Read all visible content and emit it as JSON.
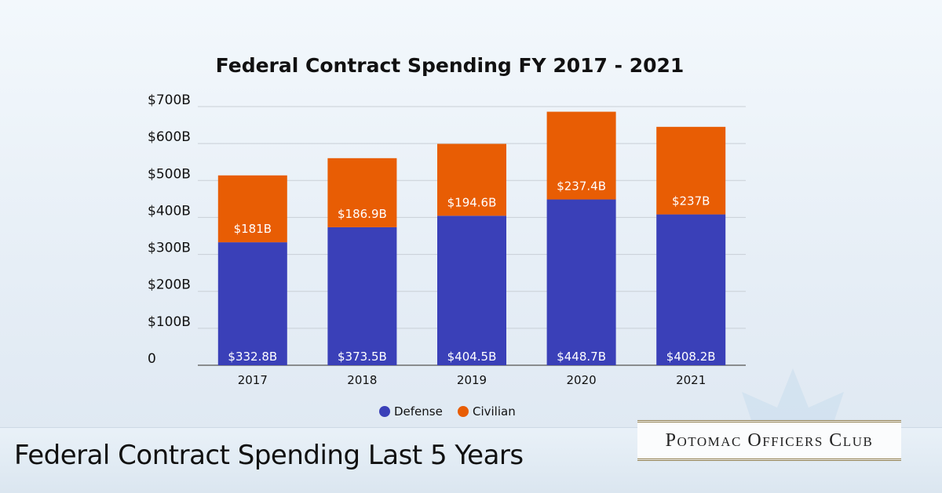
{
  "footer": {
    "headline": "Federal Contract Spending Last 5 Years",
    "brand": "Potomac Officers Club"
  },
  "colors": {
    "defense": "#3a40b8",
    "civilian": "#e85d04",
    "grid": "#c9cfd6",
    "axis": "#6c6c6c"
  },
  "chart_data": {
    "type": "bar",
    "stacked": true,
    "title": "Federal Contract Spending FY 2017 - 2021",
    "xlabel": "",
    "ylabel": "",
    "categories": [
      "2017",
      "2018",
      "2019",
      "2020",
      "2021"
    ],
    "series": [
      {
        "name": "Defense",
        "color": "#3a40b8",
        "values": [
          332.8,
          373.5,
          404.5,
          448.7,
          408.2
        ],
        "labels": [
          "$332.8B",
          "$373.5B",
          "$404.5B",
          "$448.7B",
          "$408.2B"
        ]
      },
      {
        "name": "Civilian",
        "color": "#e85d04",
        "values": [
          181,
          186.9,
          194.6,
          237.4,
          237
        ],
        "labels": [
          "$181B",
          "$186.9B",
          "$194.6B",
          "$237.4B",
          "$237B"
        ]
      }
    ],
    "ylim": [
      0,
      700
    ],
    "yticks": [
      0,
      100,
      200,
      300,
      400,
      500,
      600,
      700
    ],
    "ytick_labels": [
      "0",
      "$100B",
      "$200B",
      "$300B",
      "$400B",
      "$500B",
      "$600B",
      "$700B"
    ],
    "grid": true,
    "legend_position": "bottom"
  }
}
